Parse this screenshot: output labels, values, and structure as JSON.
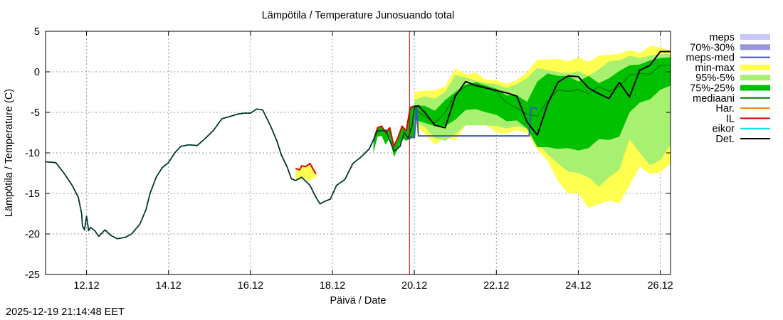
{
  "chart_data": {
    "type": "area",
    "title": "Lämpötila / Temperature   Junosuando total",
    "xlabel": "Päivä / Date",
    "ylabel": "Lämpötila / Temperature (C)",
    "ylim": [
      -25,
      5
    ],
    "yticks": [
      "5",
      "0",
      "-5",
      "-10",
      "-15",
      "-20",
      "-25"
    ],
    "ytick_values": [
      5,
      0,
      -5,
      -10,
      -15,
      -20,
      -25
    ],
    "xlim_days": [
      0,
      15.25
    ],
    "xticks": [
      {
        "label": "12.12",
        "day": 1
      },
      {
        "label": "14.12",
        "day": 3
      },
      {
        "label": "16.12",
        "day": 5
      },
      {
        "label": "18.12",
        "day": 7
      },
      {
        "label": "20.12",
        "day": 9
      },
      {
        "label": "22.12",
        "day": 11
      },
      {
        "label": "24.12",
        "day": 13
      },
      {
        "label": "26.12",
        "day": 15
      }
    ],
    "grid": true,
    "legend_position": "right",
    "now_marker_day": 8.88,
    "colors": {
      "meps_band": "#c8c8f8",
      "band_70_30": "#9898d8",
      "meps_med": "#4050c0",
      "min_max": "#ffff50",
      "p95_5": "#a8f070",
      "p75_25": "#00c000",
      "mediaani": "#007800",
      "har": "#ff8000",
      "il": "#e00000",
      "eikor": "#00e0e0",
      "det": "#000000",
      "observed": "#003830",
      "now_line": "#c00000"
    },
    "legend": [
      {
        "label": "meps",
        "style": "band",
        "color": "#c8c8f8"
      },
      {
        "label": "70%-30%",
        "style": "band",
        "color": "#9898d8"
      },
      {
        "label": "meps-med",
        "style": "line",
        "color": "#4050c0"
      },
      {
        "label": "min-max",
        "style": "band",
        "color": "#ffff50"
      },
      {
        "label": "95%-5%",
        "style": "band",
        "color": "#a8f070"
      },
      {
        "label": "75%-25%",
        "style": "band",
        "color": "#00c000"
      },
      {
        "label": "mediaani",
        "style": "line",
        "color": "#007800"
      },
      {
        "label": "Har.",
        "style": "line",
        "color": "#ff8000"
      },
      {
        "label": "IL",
        "style": "line",
        "color": "#e00000"
      },
      {
        "label": "eikor",
        "style": "line",
        "color": "#00e0e0"
      },
      {
        "label": "Det.",
        "style": "line",
        "color": "#000000"
      }
    ],
    "series": [
      {
        "name": "observed",
        "x": [
          0,
          0.25,
          0.45,
          0.65,
          0.8,
          0.88,
          0.9,
          0.95,
          1.0,
          1.05,
          1.1,
          1.2,
          1.3,
          1.45,
          1.6,
          1.75,
          1.95,
          2.1,
          2.3,
          2.45,
          2.55,
          2.7,
          2.85,
          3.0,
          3.15,
          3.3,
          3.5,
          3.7,
          3.9,
          4.1,
          4.3,
          4.5,
          4.7,
          4.85,
          5.0,
          5.15,
          5.3,
          5.5,
          5.65,
          5.75,
          5.9,
          6.0,
          6.1,
          6.25,
          6.45,
          6.6,
          6.7,
          6.8,
          6.95,
          7.1,
          7.3,
          7.5,
          7.7,
          7.9,
          8.1,
          8.3,
          8.5,
          8.65,
          8.75,
          8.85,
          8.95,
          9.0
        ],
        "values": [
          -11.1,
          -11.2,
          -12.5,
          -14.0,
          -15.5,
          -17.5,
          -19.0,
          -19.5,
          -17.8,
          -19.6,
          -19.2,
          -19.6,
          -20.3,
          -19.5,
          -20.2,
          -20.6,
          -20.4,
          -20.0,
          -18.8,
          -17.0,
          -15.0,
          -13.0,
          -11.8,
          -11.2,
          -10.0,
          -9.2,
          -9.0,
          -9.1,
          -8.2,
          -7.2,
          -5.8,
          -5.5,
          -5.2,
          -5.1,
          -5.1,
          -4.6,
          -4.7,
          -6.8,
          -8.6,
          -10.2,
          -11.8,
          -13.2,
          -13.4,
          -13.0,
          -14.0,
          -15.5,
          -16.3,
          -16.0,
          -15.7,
          -14.0,
          -13.3,
          -11.3,
          -10.5,
          -9.5,
          -7.3,
          -7.2,
          -9.8,
          -9.2,
          -7.5,
          -8.2,
          -6.5,
          -4.3
        ]
      },
      {
        "name": "il_history",
        "x": [
          6.1,
          6.2,
          6.25,
          6.35,
          6.45,
          6.55,
          6.6
        ],
        "values": [
          -11.9,
          -12.1,
          -11.6,
          -11.7,
          -11.3,
          -12.2,
          -12.6
        ]
      },
      {
        "name": "yellow_history_band",
        "x": [
          6.1,
          6.2,
          6.3,
          6.4,
          6.5,
          6.6
        ],
        "upper": [
          -11.9,
          -12.1,
          -11.6,
          -11.7,
          -11.3,
          -12.6
        ],
        "lower": [
          -13.1,
          -13.4,
          -13.0,
          -13.5,
          -13.2,
          -13.0
        ]
      },
      {
        "name": "red_history_band",
        "x": [
          8.0,
          8.1,
          8.2,
          8.3,
          8.4,
          8.5,
          8.6,
          8.7,
          8.8,
          8.9,
          9.0
        ],
        "upper": [
          -8.5,
          -6.9,
          -6.7,
          -7.5,
          -6.9,
          -9.2,
          -8.1,
          -6.7,
          -7.3,
          -4.4,
          -4.2
        ],
        "lower": [
          -10.0,
          -8.0,
          -7.9,
          -9.0,
          -8.1,
          -10.5,
          -9.5,
          -8.2,
          -8.5,
          -8.3,
          -8.0
        ]
      },
      {
        "name": "min-max",
        "x": [
          9.0,
          9.25,
          9.5,
          9.75,
          10.0,
          10.25,
          10.5,
          10.75,
          11.0,
          11.25,
          11.5,
          11.75,
          12.0,
          12.25,
          12.5,
          12.75,
          13.0,
          13.25,
          13.5,
          13.75,
          14.0,
          14.25,
          14.5,
          14.75,
          15.0,
          15.25
        ],
        "upper": [
          -2.5,
          -2.3,
          -2.3,
          -1.8,
          0.4,
          -0.3,
          -0.1,
          -1.0,
          -1.0,
          -1.5,
          -1.0,
          0.0,
          1.5,
          1.5,
          1.6,
          1.3,
          1.8,
          1.2,
          2.0,
          2.1,
          2.2,
          2.7,
          2.3,
          3.2,
          3.0,
          2.7
        ],
        "lower": [
          -6.7,
          -7.6,
          -9.0,
          -8.0,
          -8.5,
          -6.6,
          -6.6,
          -6.6,
          -7.5,
          -7.6,
          -7.2,
          -7.5,
          -9.6,
          -11.0,
          -13.5,
          -15.0,
          -15.0,
          -16.8,
          -16.3,
          -15.9,
          -16.2,
          -14.0,
          -11.7,
          -12.6,
          -12.4,
          -11.3
        ]
      },
      {
        "name": "95%-5%",
        "x": [
          9.0,
          9.25,
          9.5,
          9.75,
          10.0,
          10.25,
          10.5,
          10.75,
          11.0,
          11.25,
          11.5,
          11.75,
          12.0,
          12.25,
          12.5,
          12.75,
          13.0,
          13.25,
          13.5,
          13.75,
          14.0,
          14.25,
          14.5,
          14.75,
          15.0,
          15.25
        ],
        "upper": [
          -3.5,
          -3.0,
          -3.3,
          -2.5,
          -0.4,
          -0.7,
          -1.1,
          -1.4,
          -1.5,
          -2.0,
          -1.5,
          -0.8,
          0.5,
          0.2,
          0.0,
          -0.2,
          0.1,
          -0.5,
          0.3,
          1.3,
          1.4,
          2.0,
          1.7,
          2.0,
          2.2,
          2.2
        ],
        "lower": [
          -6.2,
          -6.8,
          -8.2,
          -8.5,
          -7.7,
          -6.6,
          -6.6,
          -6.6,
          -6.7,
          -7.0,
          -6.7,
          -7.0,
          -8.7,
          -10.2,
          -11.3,
          -12.3,
          -12.5,
          -13.0,
          -14.2,
          -13.0,
          -12.1,
          -8.3,
          -10.0,
          -11.5,
          -10.9,
          -9.0
        ]
      },
      {
        "name": "75%-25%",
        "x": [
          9.0,
          9.25,
          9.5,
          9.75,
          10.0,
          10.25,
          10.5,
          10.75,
          11.0,
          11.25,
          11.5,
          11.75,
          12.0,
          12.25,
          12.5,
          12.75,
          13.0,
          13.25,
          13.5,
          13.75,
          14.0,
          14.25,
          14.5,
          14.75,
          15.0,
          15.25
        ],
        "upper": [
          -4.1,
          -4.2,
          -4.8,
          -3.5,
          -2.5,
          -1.6,
          -1.3,
          -1.7,
          -2.1,
          -2.9,
          -2.9,
          -3.7,
          -1.2,
          -0.2,
          -0.5,
          -0.5,
          -1.2,
          -0.5,
          -1.4,
          -0.8,
          0.1,
          0.8,
          0.9,
          1.4,
          1.7,
          1.8
        ],
        "lower": [
          -5.9,
          -6.3,
          -6.7,
          -6.7,
          -5.9,
          -4.7,
          -4.6,
          -5.0,
          -5.3,
          -6.1,
          -6.0,
          -7.0,
          -9.3,
          -9.3,
          -9.5,
          -9.4,
          -9.7,
          -9.4,
          -8.3,
          -8.4,
          -8.0,
          -5.0,
          -3.8,
          -3.4,
          -2.2,
          -1.7
        ]
      },
      {
        "name": "mediaani",
        "x": [
          9.0,
          9.25,
          9.5,
          9.75,
          10.0,
          10.25,
          10.5,
          10.75,
          11.0,
          11.25,
          11.5,
          11.75,
          12.0,
          12.25,
          12.5,
          12.75,
          13.0,
          13.25,
          13.5,
          13.75,
          14.0,
          14.25,
          14.5,
          14.75,
          15.0,
          15.25
        ],
        "values": [
          -4.6,
          -5.5,
          -6.3,
          -5.0,
          -2.8,
          -1.8,
          -1.6,
          -1.9,
          -2.5,
          -3.8,
          -4.5,
          -5.2,
          -5.5,
          -3.6,
          -2.2,
          -2.4,
          -2.2,
          -2.7,
          -1.8,
          -2.4,
          -1.8,
          -0.4,
          -0.2,
          -0.3,
          0.8,
          0.8
        ]
      },
      {
        "name": "meps-med",
        "x": [
          8.88,
          9.0,
          9.05,
          9.1,
          9.5,
          10.0,
          10.5,
          11.0,
          11.5,
          11.8,
          11.85,
          11.9,
          12.0
        ],
        "values": [
          -8.1,
          -8.1,
          -4.3,
          -7.9,
          -7.9,
          -7.9,
          -7.9,
          -7.9,
          -7.9,
          -7.9,
          -4.4,
          -4.4,
          -4.6
        ]
      },
      {
        "name": "Det.",
        "x": [
          9.0,
          9.1,
          9.25,
          9.5,
          9.75,
          10.0,
          10.25,
          10.5,
          10.75,
          11.0,
          11.25,
          11.5,
          11.75,
          12.0,
          12.25,
          12.5,
          12.75,
          13.0,
          13.25,
          13.5,
          13.75,
          14.0,
          14.25,
          14.5,
          14.75,
          15.0,
          15.25
        ],
        "values": [
          -4.3,
          -4.2,
          -5.0,
          -6.6,
          -6.9,
          -3.0,
          -1.2,
          -1.7,
          -2.0,
          -2.3,
          -2.6,
          -3.0,
          -6.2,
          -7.8,
          -4.0,
          -1.3,
          -0.5,
          -0.6,
          -2.0,
          -2.7,
          -3.3,
          -1.3,
          -3.1,
          0.2,
          0.8,
          2.5,
          2.5
        ]
      }
    ]
  },
  "footer": {
    "timestamp": "2025-12-19 21:14:48 EET"
  }
}
